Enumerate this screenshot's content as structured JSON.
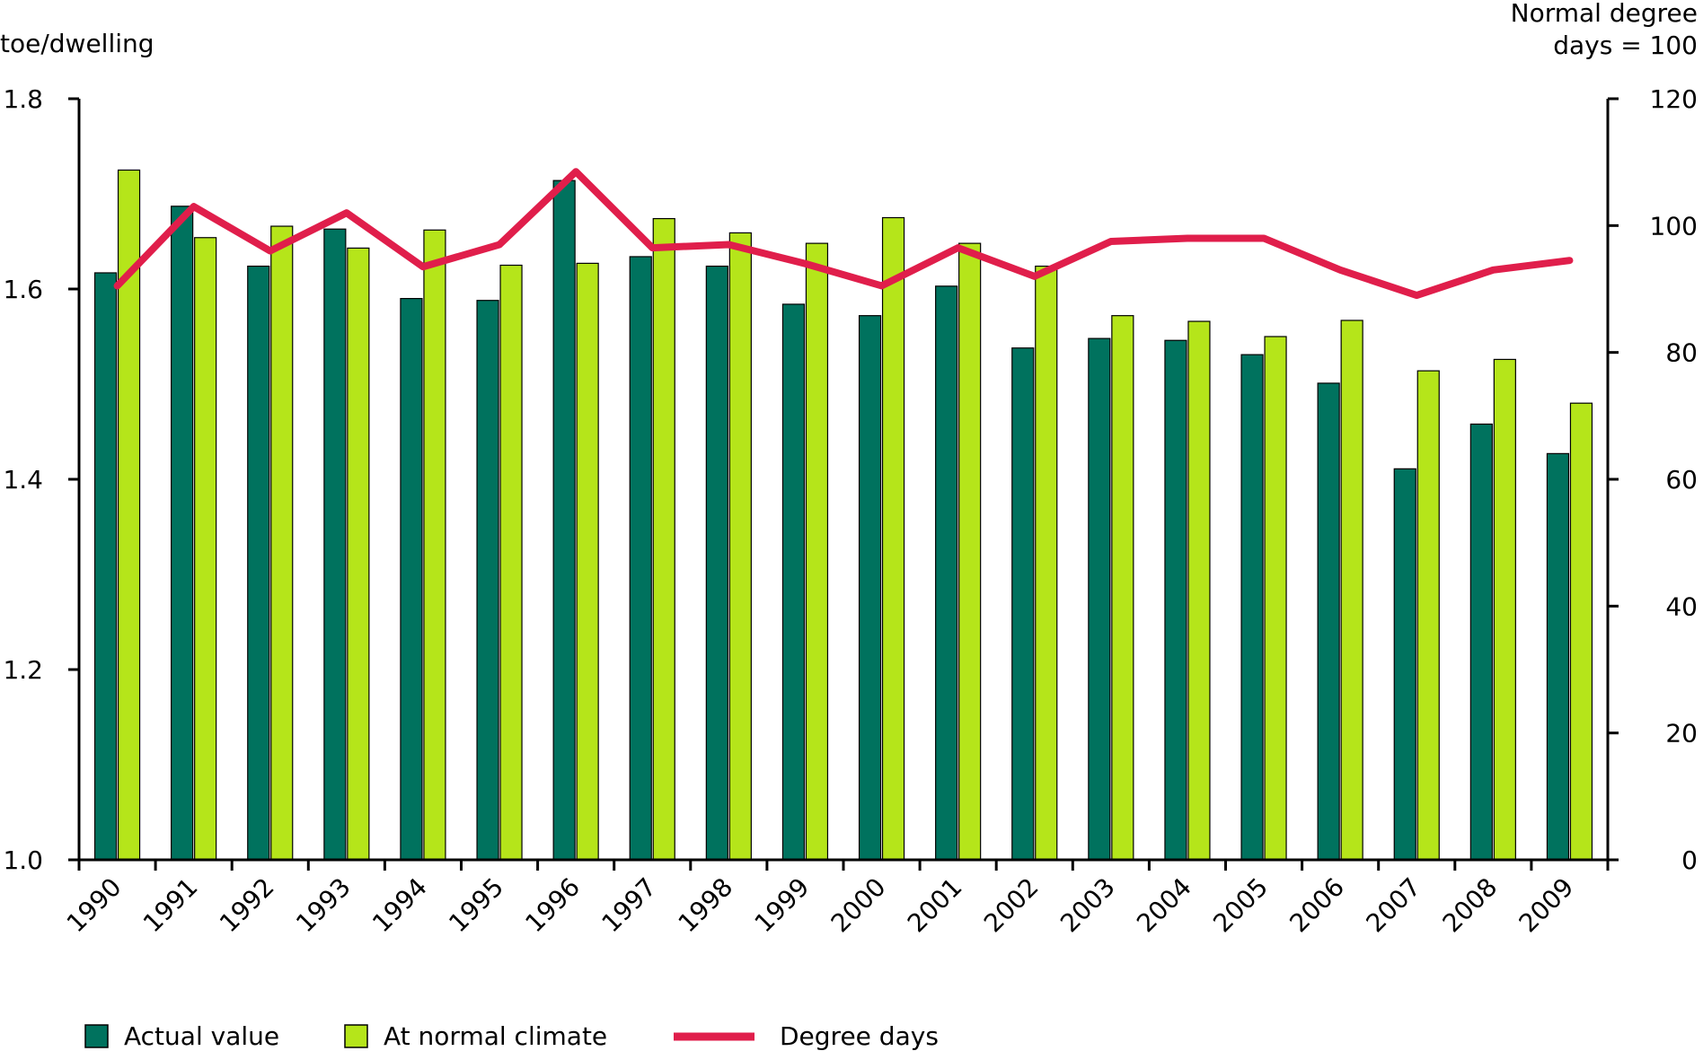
{
  "chart_data": {
    "type": "bar",
    "categories": [
      "1990",
      "1991",
      "1992",
      "1993",
      "1994",
      "1995",
      "1996",
      "1997",
      "1998",
      "1999",
      "2000",
      "2001",
      "2002",
      "2003",
      "2004",
      "2005",
      "2006",
      "2007",
      "2008",
      "2009"
    ],
    "series": [
      {
        "name": "Actual value",
        "axis": "left",
        "color": "#00725e",
        "values": [
          1.617,
          1.687,
          1.624,
          1.663,
          1.59,
          1.588,
          1.714,
          1.634,
          1.624,
          1.584,
          1.572,
          1.603,
          1.538,
          1.548,
          1.546,
          1.531,
          1.501,
          1.411,
          1.458,
          1.427
        ]
      },
      {
        "name": "At normal climate",
        "axis": "left",
        "color": "#b5e51a",
        "values": [
          1.725,
          1.654,
          1.666,
          1.643,
          1.662,
          1.625,
          1.627,
          1.674,
          1.659,
          1.648,
          1.675,
          1.648,
          1.624,
          1.572,
          1.566,
          1.55,
          1.567,
          1.514,
          1.526,
          1.48
        ]
      },
      {
        "name": "Degree days",
        "axis": "right",
        "type": "line",
        "color": "#e01e4b",
        "values": [
          90.5,
          103,
          96,
          102,
          93.5,
          97,
          108.5,
          96.5,
          97,
          94,
          90.5,
          96.5,
          92,
          97.5,
          98,
          98,
          93,
          89,
          93,
          94.5
        ]
      }
    ],
    "y_left": {
      "label": "toe/dwelling",
      "ylim": [
        1.0,
        1.8
      ],
      "ticks": [
        "1.0",
        "1.2",
        "1.4",
        "1.6",
        "1.8"
      ]
    },
    "y_right": {
      "label_line1": "Normal degree",
      "label_line2": "days = 100",
      "ylim": [
        0,
        120
      ],
      "ticks": [
        "0",
        "20",
        "40",
        "60",
        "80",
        "100",
        "120"
      ]
    },
    "grid": false,
    "legend_position": "bottom"
  }
}
